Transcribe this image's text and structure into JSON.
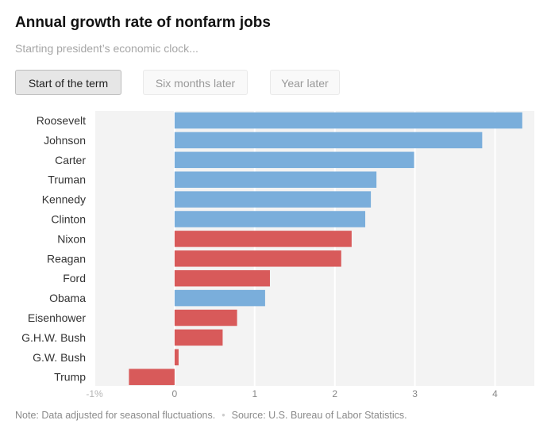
{
  "title": "Annual growth rate of nonfarm jobs",
  "subtitle": "Starting president’s economic clock...",
  "buttons": {
    "start": "Start of the term",
    "six_months": "Six months later",
    "year": "Year later"
  },
  "note": "Note: Data adjusted for seasonal fluctuations.",
  "source": "Source: U.S. Bureau of Labor Statistics.",
  "colors": {
    "democrat": "#7aaedb",
    "republican": "#d85a5a",
    "background": "#f3f3f3",
    "grid": "#ffffff"
  },
  "chart_data": {
    "type": "bar",
    "orientation": "horizontal",
    "xlim": [
      -1,
      4.4
    ],
    "x_ticks": [
      {
        "value": -1,
        "label": "-1%"
      },
      {
        "value": 0,
        "label": "0"
      },
      {
        "value": 1,
        "label": "1"
      },
      {
        "value": 2,
        "label": "2"
      },
      {
        "value": 3,
        "label": "3"
      },
      {
        "value": 4,
        "label": "4"
      }
    ],
    "bars": [
      {
        "label": "Roosevelt",
        "value": 4.34,
        "party": "democrat"
      },
      {
        "label": "Johnson",
        "value": 3.84,
        "party": "democrat"
      },
      {
        "label": "Carter",
        "value": 2.99,
        "party": "democrat"
      },
      {
        "label": "Truman",
        "value": 2.52,
        "party": "democrat"
      },
      {
        "label": "Kennedy",
        "value": 2.45,
        "party": "democrat"
      },
      {
        "label": "Clinton",
        "value": 2.38,
        "party": "democrat"
      },
      {
        "label": "Nixon",
        "value": 2.21,
        "party": "republican"
      },
      {
        "label": "Reagan",
        "value": 2.08,
        "party": "republican"
      },
      {
        "label": "Ford",
        "value": 1.19,
        "party": "republican"
      },
      {
        "label": "Obama",
        "value": 1.13,
        "party": "democrat"
      },
      {
        "label": "Eisenhower",
        "value": 0.78,
        "party": "republican"
      },
      {
        "label": "G.H.W. Bush",
        "value": 0.6,
        "party": "republican"
      },
      {
        "label": "G.W. Bush",
        "value": 0.05,
        "party": "republican"
      },
      {
        "label": "Trump",
        "value": -0.57,
        "party": "republican"
      }
    ],
    "grid": true
  }
}
